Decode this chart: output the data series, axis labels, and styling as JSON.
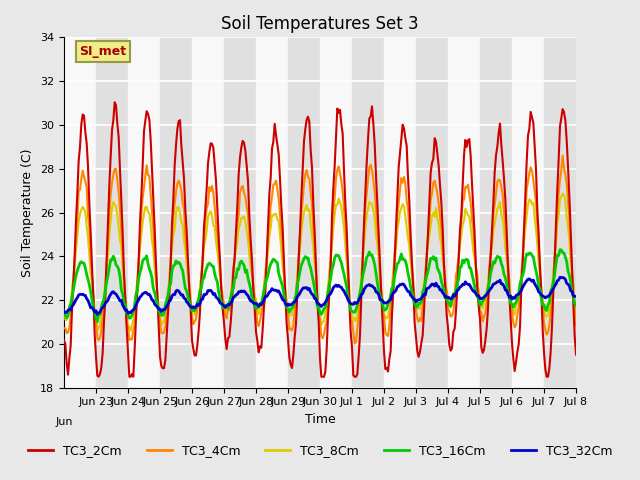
{
  "title": "Soil Temperatures Set 3",
  "xlabel": "Time",
  "ylabel": "Soil Temperature (C)",
  "ylim": [
    18,
    34
  ],
  "x_tick_labels": [
    "Jun 23",
    "Jun 24",
    "Jun 25",
    "Jun 26",
    "Jun 27",
    "Jun 28",
    "Jun 29",
    "Jun 30",
    "Jul 1",
    "Jul 2",
    "Jul 3",
    "Jul 4",
    "Jul 5",
    "Jul 6",
    "Jul 7",
    "Jul 8"
  ],
  "series_colors": {
    "TC3_2Cm": "#cc0000",
    "TC3_4Cm": "#ff8800",
    "TC3_8Cm": "#ddcc00",
    "TC3_16Cm": "#00cc00",
    "TC3_32Cm": "#0000cc"
  },
  "series_linewidths": {
    "TC3_2Cm": 1.5,
    "TC3_4Cm": 1.5,
    "TC3_8Cm": 1.5,
    "TC3_16Cm": 2.0,
    "TC3_32Cm": 2.0
  },
  "annotation_text": "SI_met",
  "annotation_color": "#aa0000",
  "annotation_bg": "#eeee88",
  "annotation_edge": "#999944",
  "background_color": "#e8e8e8",
  "grid_color": "#ffffff",
  "title_fontsize": 12,
  "axis_fontsize": 9,
  "tick_fontsize": 8,
  "legend_fontsize": 9,
  "yticks": [
    18,
    20,
    22,
    24,
    26,
    28,
    30,
    32,
    34
  ]
}
